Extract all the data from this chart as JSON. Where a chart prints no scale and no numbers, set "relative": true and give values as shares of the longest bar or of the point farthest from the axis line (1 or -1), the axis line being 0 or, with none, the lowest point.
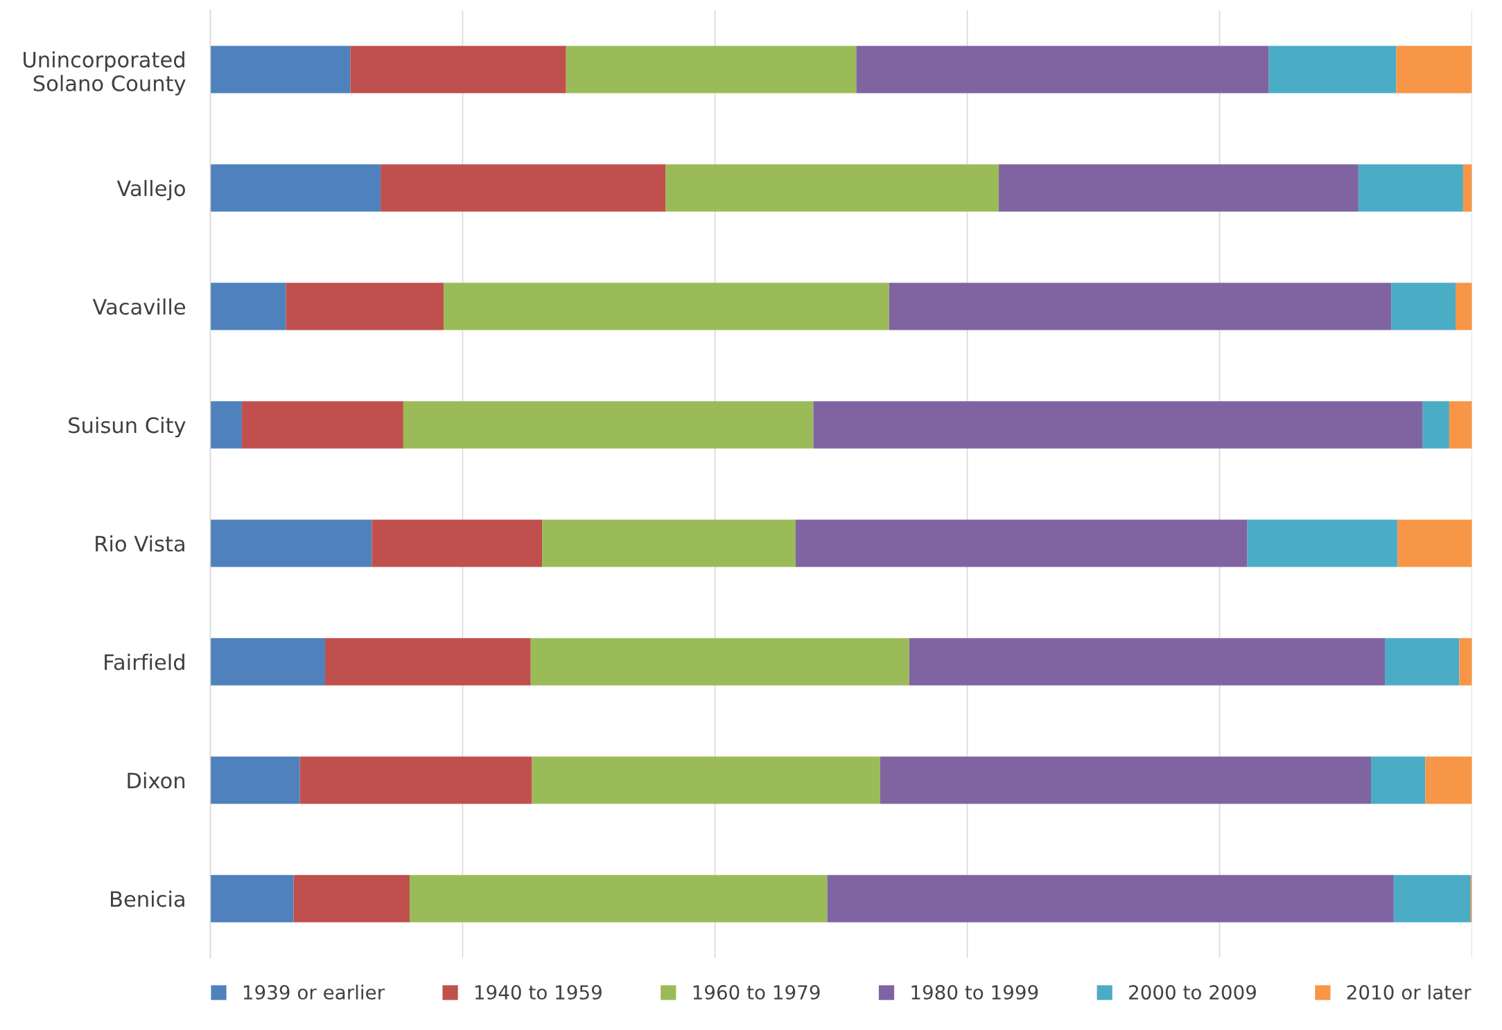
{
  "chart_data": {
    "type": "bar",
    "orientation": "horizontal",
    "stacked": true,
    "relative": true,
    "grid": "x",
    "legend": "bottom",
    "categories": [
      "Unincorporated\nSolano County",
      "Vallejo",
      "Vacaville",
      "Suisun City",
      "Rio Vista",
      "Fairfield",
      "Dixon",
      "Benicia"
    ],
    "series": [
      {
        "name": "1939 or earlier",
        "color": "#4f81bd",
        "values": [
          0.111,
          0.135,
          0.06,
          0.025,
          0.128,
          0.091,
          0.071,
          0.066
        ]
      },
      {
        "name": "1940 to 1959",
        "color": "#c0504d",
        "values": [
          0.171,
          0.226,
          0.125,
          0.128,
          0.135,
          0.163,
          0.184,
          0.092
        ]
      },
      {
        "name": "1960 to 1979",
        "color": "#9bbb59",
        "values": [
          0.23,
          0.264,
          0.353,
          0.325,
          0.201,
          0.3,
          0.276,
          0.331
        ]
      },
      {
        "name": "1980 to 1999",
        "color": "#8064a2",
        "values": [
          0.327,
          0.285,
          0.398,
          0.483,
          0.358,
          0.377,
          0.389,
          0.449
        ]
      },
      {
        "name": "2000 to 2009",
        "color": "#4bacc6",
        "values": [
          0.101,
          0.083,
          0.051,
          0.021,
          0.119,
          0.059,
          0.043,
          0.061
        ]
      },
      {
        "name": "2010 or later",
        "color": "#f79646",
        "values": [
          0.06,
          0.007,
          0.013,
          0.018,
          0.059,
          0.01,
          0.037,
          0.001
        ]
      }
    ]
  }
}
